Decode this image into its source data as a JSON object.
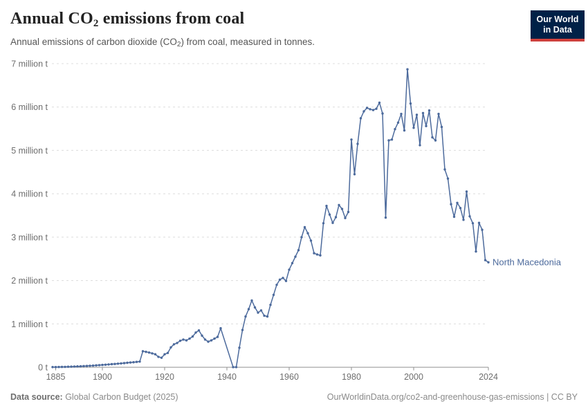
{
  "header": {
    "title_pre": "Annual CO",
    "title_sub": "2",
    "title_post": " emissions from coal",
    "subtitle_pre": "Annual emissions of carbon dioxide (CO",
    "subtitle_sub": "2",
    "subtitle_post": ") from coal, measured in tonnes."
  },
  "logo": {
    "line1": "Our World",
    "line2": "in Data",
    "bg_color": "#002147",
    "bar_color": "#d0413d"
  },
  "chart_data": {
    "type": "line",
    "title": "Annual CO2 emissions from coal",
    "unit": "tonnes",
    "entity_label": "North Macedonia",
    "line_color": "#4C6A9C",
    "grid": "horizontal-dashed",
    "xlim": [
      1884,
      2024
    ],
    "ylim": [
      0,
      7000000
    ],
    "x_ticks": [
      1885,
      1900,
      1920,
      1940,
      1960,
      1980,
      2000,
      2024
    ],
    "y_ticks": [
      {
        "value": 0,
        "label": "0 t"
      },
      {
        "value": 1000000,
        "label": "1 million t"
      },
      {
        "value": 2000000,
        "label": "2 million t"
      },
      {
        "value": 3000000,
        "label": "3 million t"
      },
      {
        "value": 4000000,
        "label": "4 million t"
      },
      {
        "value": 5000000,
        "label": "5 million t"
      },
      {
        "value": 6000000,
        "label": "6 million t"
      },
      {
        "value": 7000000,
        "label": "7 million t"
      }
    ],
    "series": [
      {
        "name": "North Macedonia",
        "color": "#4C6A9C",
        "points": [
          [
            1884,
            4000
          ],
          [
            1885,
            5000
          ],
          [
            1886,
            6000
          ],
          [
            1887,
            8000
          ],
          [
            1888,
            10000
          ],
          [
            1889,
            12000
          ],
          [
            1890,
            14000
          ],
          [
            1891,
            17000
          ],
          [
            1892,
            20000
          ],
          [
            1893,
            23000
          ],
          [
            1894,
            27000
          ],
          [
            1895,
            31000
          ],
          [
            1896,
            35000
          ],
          [
            1897,
            39000
          ],
          [
            1898,
            44000
          ],
          [
            1899,
            49000
          ],
          [
            1900,
            54000
          ],
          [
            1901,
            59000
          ],
          [
            1902,
            65000
          ],
          [
            1903,
            71000
          ],
          [
            1904,
            77000
          ],
          [
            1905,
            83000
          ],
          [
            1906,
            89000
          ],
          [
            1907,
            96000
          ],
          [
            1908,
            103000
          ],
          [
            1909,
            110000
          ],
          [
            1910,
            117000
          ],
          [
            1911,
            124000
          ],
          [
            1912,
            131000
          ],
          [
            1913,
            370000
          ],
          [
            1914,
            355000
          ],
          [
            1915,
            340000
          ],
          [
            1916,
            320000
          ],
          [
            1917,
            300000
          ],
          [
            1918,
            240000
          ],
          [
            1919,
            220000
          ],
          [
            1920,
            300000
          ],
          [
            1921,
            330000
          ],
          [
            1922,
            460000
          ],
          [
            1923,
            530000
          ],
          [
            1924,
            560000
          ],
          [
            1925,
            610000
          ],
          [
            1926,
            640000
          ],
          [
            1927,
            620000
          ],
          [
            1928,
            660000
          ],
          [
            1929,
            710000
          ],
          [
            1930,
            800000
          ],
          [
            1931,
            850000
          ],
          [
            1932,
            730000
          ],
          [
            1933,
            640000
          ],
          [
            1934,
            590000
          ],
          [
            1935,
            620000
          ],
          [
            1936,
            660000
          ],
          [
            1937,
            700000
          ],
          [
            1938,
            900000
          ],
          [
            1942,
            3000
          ],
          [
            1943,
            3000
          ],
          [
            1944,
            450000
          ],
          [
            1945,
            860000
          ],
          [
            1946,
            1170000
          ],
          [
            1947,
            1340000
          ],
          [
            1948,
            1540000
          ],
          [
            1949,
            1380000
          ],
          [
            1950,
            1260000
          ],
          [
            1951,
            1310000
          ],
          [
            1952,
            1190000
          ],
          [
            1953,
            1170000
          ],
          [
            1954,
            1440000
          ],
          [
            1955,
            1670000
          ],
          [
            1956,
            1900000
          ],
          [
            1957,
            2020000
          ],
          [
            1958,
            2060000
          ],
          [
            1959,
            1990000
          ],
          [
            1960,
            2250000
          ],
          [
            1961,
            2400000
          ],
          [
            1962,
            2550000
          ],
          [
            1963,
            2700000
          ],
          [
            1964,
            3000000
          ],
          [
            1965,
            3230000
          ],
          [
            1966,
            3090000
          ],
          [
            1967,
            2920000
          ],
          [
            1968,
            2630000
          ],
          [
            1969,
            2600000
          ],
          [
            1970,
            2580000
          ],
          [
            1971,
            3320000
          ],
          [
            1972,
            3720000
          ],
          [
            1973,
            3520000
          ],
          [
            1974,
            3330000
          ],
          [
            1975,
            3460000
          ],
          [
            1976,
            3740000
          ],
          [
            1977,
            3650000
          ],
          [
            1978,
            3440000
          ],
          [
            1979,
            3580000
          ],
          [
            1980,
            5250000
          ],
          [
            1981,
            4450000
          ],
          [
            1982,
            5150000
          ],
          [
            1983,
            5740000
          ],
          [
            1984,
            5900000
          ],
          [
            1985,
            5980000
          ],
          [
            1986,
            5950000
          ],
          [
            1987,
            5930000
          ],
          [
            1988,
            5960000
          ],
          [
            1989,
            6100000
          ],
          [
            1990,
            5850000
          ],
          [
            1991,
            3450000
          ],
          [
            1992,
            5230000
          ],
          [
            1993,
            5250000
          ],
          [
            1994,
            5490000
          ],
          [
            1995,
            5640000
          ],
          [
            1996,
            5840000
          ],
          [
            1997,
            5460000
          ],
          [
            1998,
            6870000
          ],
          [
            1999,
            6080000
          ],
          [
            2000,
            5520000
          ],
          [
            2001,
            5820000
          ],
          [
            2002,
            5120000
          ],
          [
            2003,
            5860000
          ],
          [
            2004,
            5560000
          ],
          [
            2005,
            5920000
          ],
          [
            2006,
            5300000
          ],
          [
            2007,
            5230000
          ],
          [
            2008,
            5840000
          ],
          [
            2009,
            5540000
          ],
          [
            2010,
            4560000
          ],
          [
            2011,
            4350000
          ],
          [
            2012,
            3760000
          ],
          [
            2013,
            3470000
          ],
          [
            2014,
            3790000
          ],
          [
            2015,
            3670000
          ],
          [
            2016,
            3400000
          ],
          [
            2017,
            4050000
          ],
          [
            2018,
            3480000
          ],
          [
            2019,
            3320000
          ],
          [
            2020,
            2670000
          ],
          [
            2021,
            3330000
          ],
          [
            2022,
            3170000
          ],
          [
            2023,
            2470000
          ],
          [
            2024,
            2420000
          ]
        ]
      }
    ]
  },
  "footer": {
    "source_label": "Data source:",
    "source_text": " Global Carbon Budget (2025)",
    "credit": "OurWorldinData.org/co2-and-greenhouse-gas-emissions | CC BY"
  },
  "colors": {
    "grid": "#dcdcdc",
    "axis": "#8f8f8f",
    "tick_label": "#6e6e6e"
  }
}
